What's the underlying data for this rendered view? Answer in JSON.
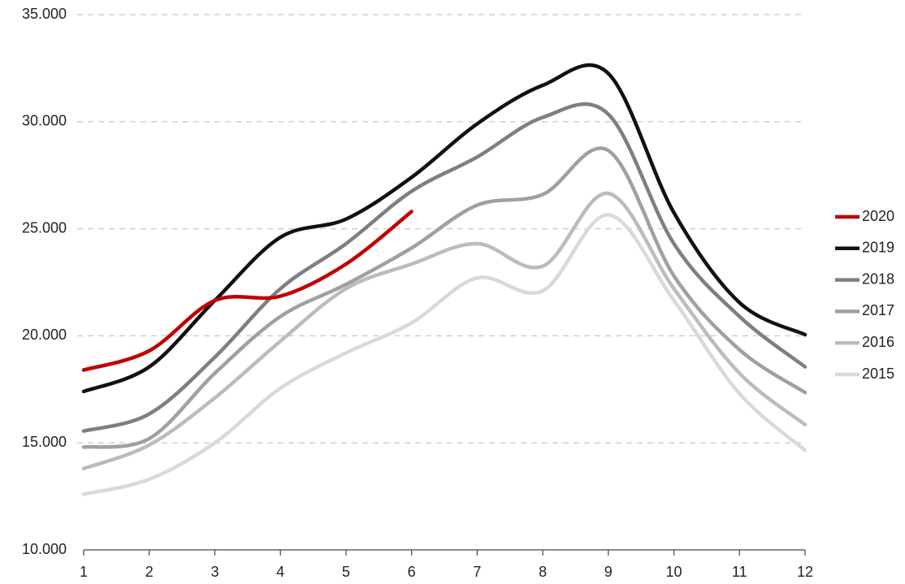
{
  "chart_data": {
    "type": "line",
    "x": [
      1,
      2,
      3,
      4,
      5,
      6,
      7,
      8,
      9,
      10,
      11,
      12
    ],
    "xlim": [
      1,
      12
    ],
    "xticks": [
      1,
      2,
      3,
      4,
      5,
      6,
      7,
      8,
      9,
      10,
      11,
      12
    ],
    "ylim": [
      10000,
      35000
    ],
    "yticks": [
      {
        "value": 10000,
        "label": "10.000"
      },
      {
        "value": 15000,
        "label": "15.000"
      },
      {
        "value": 20000,
        "label": "20.000"
      },
      {
        "value": 25000,
        "label": "25.000"
      },
      {
        "value": 30000,
        "label": "30.000"
      },
      {
        "value": 35000,
        "label": "35.000"
      }
    ],
    "grid": true,
    "smooth": true,
    "legend": "right",
    "series": [
      {
        "name": "2020",
        "color": "#c00000",
        "values": [
          18400,
          19300,
          21650,
          21850,
          23350,
          25800,
          null,
          null,
          null,
          null,
          null,
          null
        ]
      },
      {
        "name": "2019",
        "color": "#111111",
        "values": [
          17400,
          18550,
          21650,
          24600,
          25450,
          27400,
          29900,
          31700,
          32250,
          25750,
          21550,
          20050
        ]
      },
      {
        "name": "2018",
        "color": "#7f7f7f",
        "values": [
          15550,
          16350,
          19000,
          22200,
          24300,
          26750,
          28350,
          30200,
          30350,
          24300,
          20900,
          18550
        ]
      },
      {
        "name": "2017",
        "color": "#a0a0a0",
        "values": [
          14800,
          15200,
          18250,
          20900,
          22400,
          24100,
          26100,
          26600,
          28650,
          22800,
          19350,
          17350
        ]
      },
      {
        "name": "2016",
        "color": "#bcbcbc",
        "values": [
          13800,
          14900,
          17100,
          19750,
          22200,
          23350,
          24300,
          23250,
          26650,
          22200,
          18250,
          15850
        ]
      },
      {
        "name": "2015",
        "color": "#d9d9d9",
        "values": [
          12600,
          13300,
          15000,
          17550,
          19200,
          20600,
          22700,
          22100,
          25650,
          21650,
          17300,
          14650
        ]
      }
    ]
  }
}
